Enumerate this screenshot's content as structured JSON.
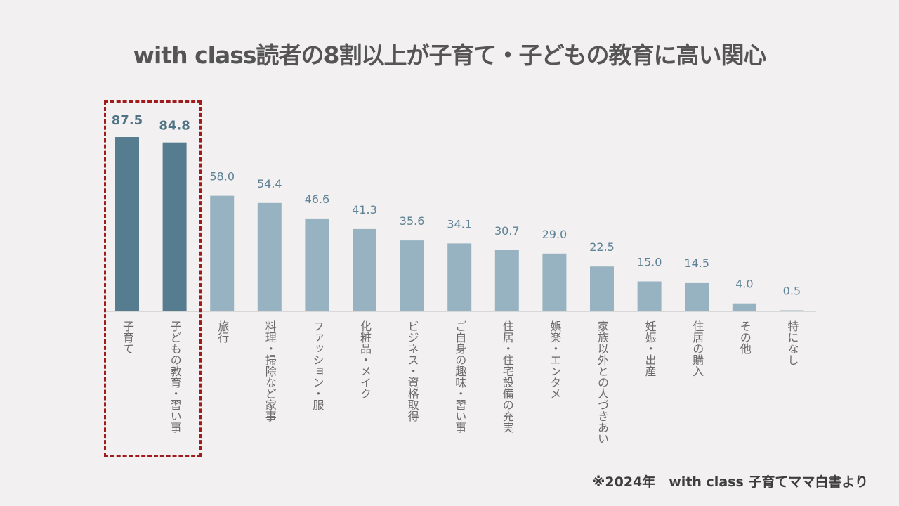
{
  "title": "with class読者の8割以上が子育て・子どもの教育に高い関心",
  "source_note": "※2024年　with class 子育てママ白書より",
  "colors": {
    "highlight_bar": "#557d8f",
    "normal_bar": "#97b3c1",
    "highlight_label": "#4f7384",
    "normal_label": "#5e8295",
    "highlight_box": "#a01c1c",
    "baseline": "#d8d8d8"
  },
  "chart_data": {
    "type": "bar",
    "title": "with class読者の8割以上が子育て・子どもの教育に高い関心",
    "xlabel": "",
    "ylabel": "",
    "ylim": [
      0,
      100
    ],
    "grid": false,
    "categories": [
      "子育て",
      "子どもの教育・習い事",
      "旅行",
      "料理・掃除など家事",
      "ファッション・服",
      "化粧品・メイク",
      "ビジネス・資格取得",
      "ご自身の趣味・習い事",
      "住居・住宅設備の充実",
      "娯楽・エンタメ",
      "家族以外との人づきあい",
      "妊娠・出産",
      "住居の購入",
      "その他",
      "特になし"
    ],
    "values": [
      87.5,
      84.8,
      58.0,
      54.4,
      46.6,
      41.3,
      35.6,
      34.1,
      30.7,
      29.0,
      22.5,
      15.0,
      14.5,
      4.0,
      0.5
    ],
    "value_labels": [
      "87.5",
      "84.8",
      "58.0",
      "54.4",
      "46.6",
      "41.3",
      "35.6",
      "34.1",
      "30.7",
      "29.0",
      "22.5",
      "15.0",
      "14.5",
      "4.0",
      "0.5"
    ],
    "highlighted": [
      true,
      true,
      false,
      false,
      false,
      false,
      false,
      false,
      false,
      false,
      false,
      false,
      false,
      false,
      false
    ]
  }
}
